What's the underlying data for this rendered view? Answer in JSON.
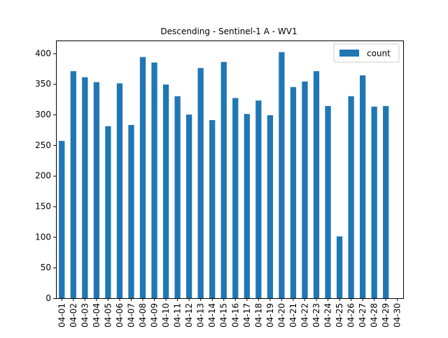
{
  "chart_data": {
    "type": "bar",
    "title": "Descending - Sentinel-1 A - WV1",
    "xlabel": "",
    "ylabel": "",
    "categories": [
      "04-01",
      "04-02",
      "04-03",
      "04-04",
      "04-05",
      "04-06",
      "04-07",
      "04-08",
      "04-09",
      "04-10",
      "04-11",
      "04-12",
      "04-13",
      "04-14",
      "04-15",
      "04-16",
      "04-17",
      "04-18",
      "04-19",
      "04-20",
      "04-21",
      "04-22",
      "04-23",
      "04-24",
      "04-25",
      "04-26",
      "04-27",
      "04-28",
      "04-29",
      "04-30"
    ],
    "series": [
      {
        "name": "count",
        "color": "#1f77b4",
        "values": [
          257,
          371,
          361,
          353,
          281,
          351,
          283,
          394,
          385,
          349,
          330,
          300,
          376,
          291,
          386,
          327,
          301,
          323,
          299,
          402,
          345,
          354,
          371,
          314,
          101,
          330,
          364,
          313,
          314,
          0
        ]
      }
    ],
    "ylim": [
      0,
      421
    ],
    "yticks": [
      0,
      50,
      100,
      150,
      200,
      250,
      300,
      350,
      400
    ],
    "legend": "top-right",
    "grid": false
  }
}
